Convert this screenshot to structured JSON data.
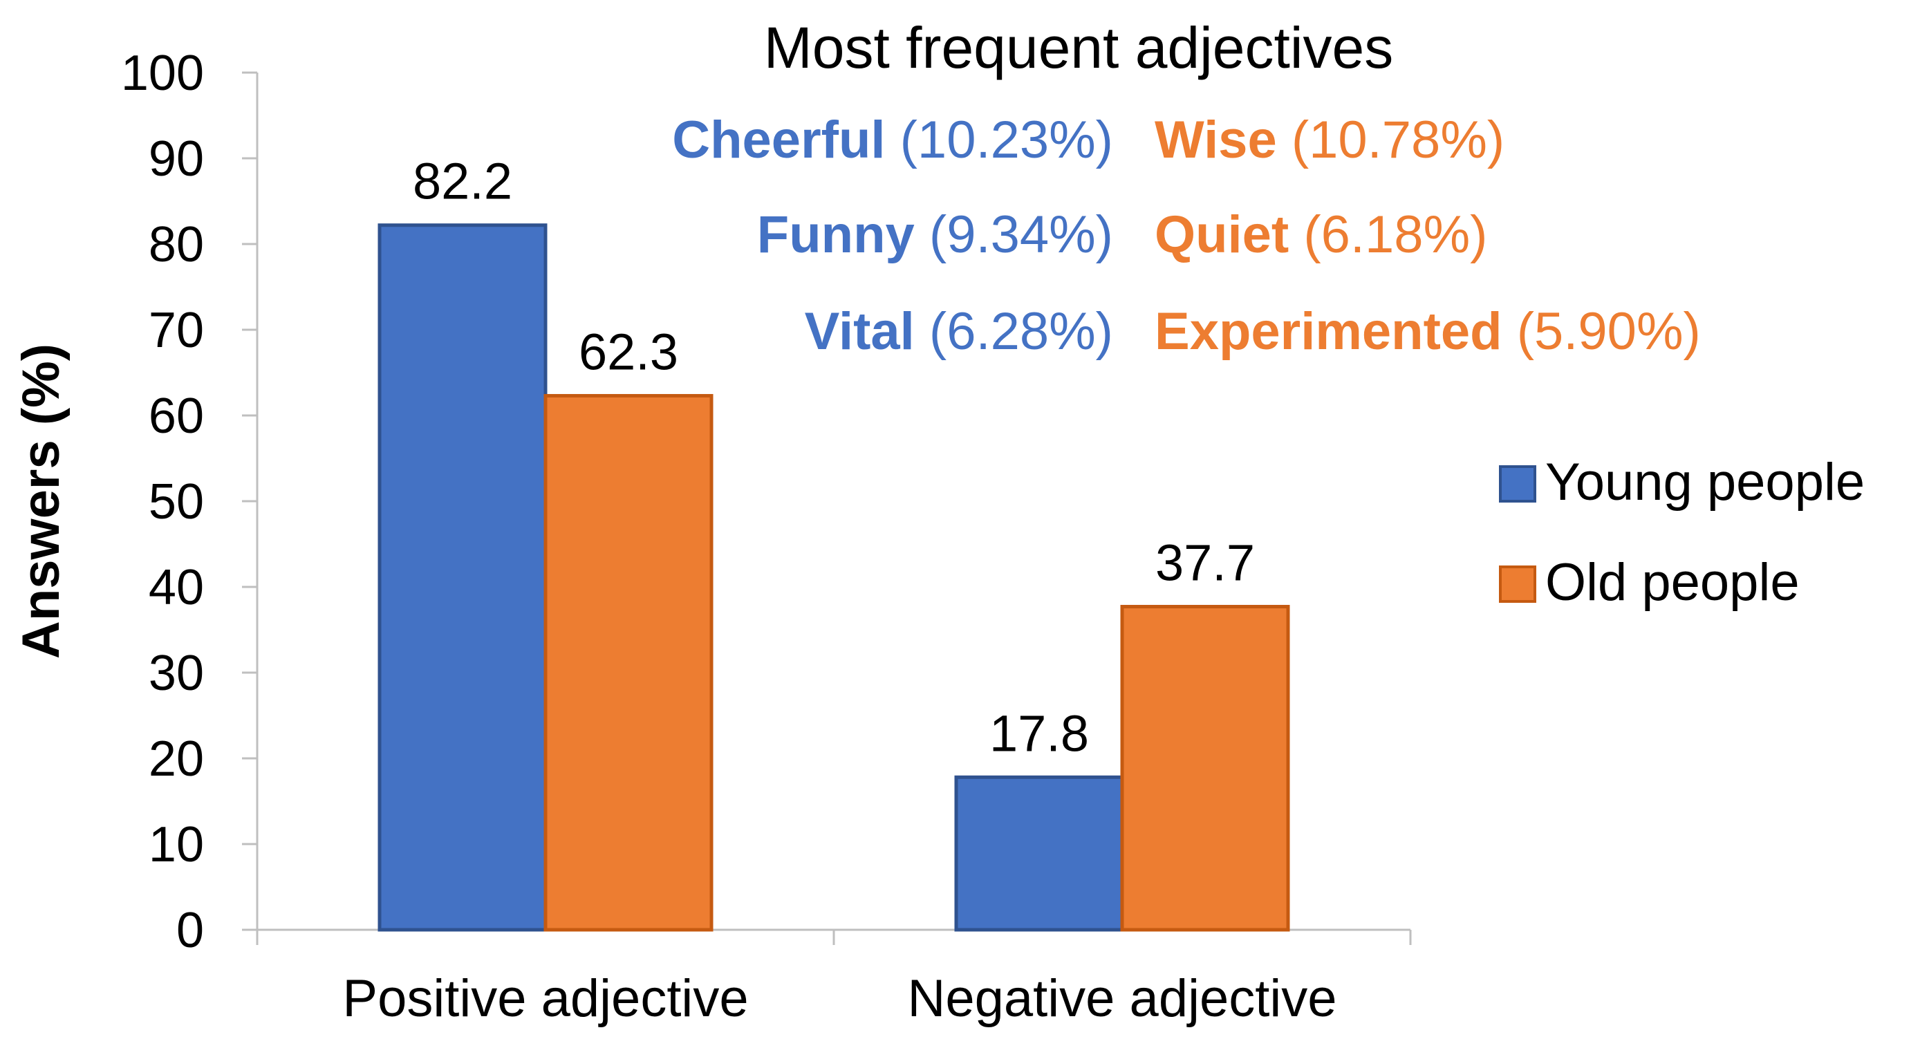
{
  "chart_data": {
    "type": "bar",
    "title": "",
    "xlabel": "",
    "ylabel": "Answers (%)",
    "ylim": [
      0,
      100
    ],
    "yticks": [
      "0",
      "10",
      "20",
      "30",
      "40",
      "50",
      "60",
      "70",
      "80",
      "90",
      "100"
    ],
    "categories": [
      "Positive adjective",
      "Negative adjective"
    ],
    "series": [
      {
        "name": "Young people",
        "color": "#4472C4",
        "values": [
          82.2,
          17.8
        ],
        "labels": [
          "82.2",
          "17.8"
        ]
      },
      {
        "name": "Old people",
        "color": "#ED7D31",
        "values": [
          62.3,
          37.7
        ],
        "labels": [
          "62.3",
          "37.7"
        ]
      }
    ],
    "legend_position": "right",
    "annotation": {
      "title": "Most frequent adjectives",
      "young": [
        {
          "word": "Cheerful",
          "pct": "(10.23%)"
        },
        {
          "word": "Funny",
          "pct": "(9.34%)"
        },
        {
          "word": "Vital",
          "pct": "(6.28%)"
        }
      ],
      "old": [
        {
          "word": "Wise",
          "pct": "(10.78%)"
        },
        {
          "word": "Quiet",
          "pct": "(6.18%)"
        },
        {
          "word": "Experimented",
          "pct": "(5.90%)"
        }
      ]
    }
  },
  "colors": {
    "young_bar": "#4472C4",
    "young_border": "#2F528F",
    "old_bar": "#ED7D31",
    "old_border": "#C55A11",
    "axis": "#BFBFBF",
    "text": "#000000"
  }
}
